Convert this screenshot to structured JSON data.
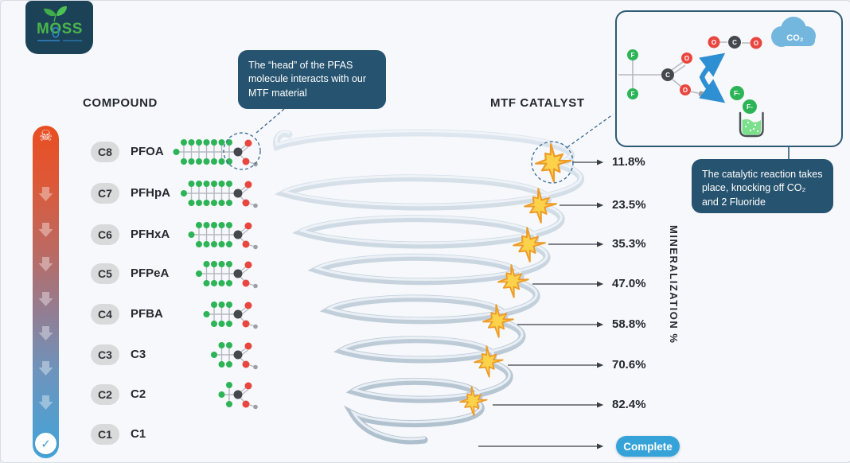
{
  "logo": {
    "text": "MOSS"
  },
  "compound": {
    "header": "COMPOUND",
    "rows": [
      {
        "badge": "C8",
        "label": "PFOA",
        "f_pairs": 7
      },
      {
        "badge": "C7",
        "label": "PFHpA",
        "f_pairs": 6
      },
      {
        "badge": "C6",
        "label": "PFHxA",
        "f_pairs": 5
      },
      {
        "badge": "C5",
        "label": "PFPeA",
        "f_pairs": 4
      },
      {
        "badge": "C4",
        "label": "PFBA",
        "f_pairs": 3
      },
      {
        "badge": "C3",
        "label": "C3",
        "f_pairs": 2
      },
      {
        "badge": "C2",
        "label": "C2",
        "f_pairs": 1
      },
      {
        "badge": "C1",
        "label": "C1",
        "f_pairs": 0
      }
    ]
  },
  "catalyst_header": "MTF CATALYST",
  "mineralization_label": "MINERALIZATION %",
  "levels": [
    "11.8%",
    "23.5%",
    "35.3%",
    "47.0%",
    "58.8%",
    "70.6%",
    "82.4%"
  ],
  "complete_label": "Complete",
  "callout_left": "The “head” of the PFAS molecule interacts with our MTF material",
  "callout_right": "The catalytic reaction takes place, knocking off CO₂ and 2 Fluoride",
  "icons": {
    "skull": "☠",
    "check": "✓"
  },
  "reaction_box": {
    "co2_cloud": "CO₂",
    "fluoride_1": "F-",
    "fluoride_2": "F-",
    "atom_f": "F",
    "atom_c": "C",
    "atom_o": "O"
  },
  "colors": {
    "accent_teal": "#26536f",
    "complete_blue": "#36a3d8",
    "bar_top_orange": "#e84e22",
    "bar_bottom_blue": "#41a5da",
    "star_fill": "#fcd24b",
    "star_stroke": "#ee9b28",
    "green_atom": "#2cb457",
    "red_atom": "#e8463f",
    "spiral_tube": "#b9c9d6"
  }
}
